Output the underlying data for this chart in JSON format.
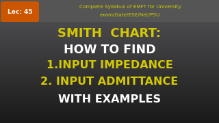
{
  "bg_color_top": "#5a5a5a",
  "bg_color_bottom": "#1a1a1a",
  "header_bg": "#555555",
  "lec_badge_color": "#cc5500",
  "lec_text": "Lec: 45",
  "header_text_line1": "Complete Syllabus of EMFT for University",
  "header_text_line2": "exam/Gate/ESE/Net/PSU",
  "line1": "SMITH  CHART:",
  "line2": "HOW TO FIND",
  "line3": "1.INPUT IMPEDANCE",
  "line4": "2. INPUT ADMITTANCE",
  "line5": "WITH EXAMPLES",
  "yellow_color": "#d4c800",
  "white_color": "#ffffff",
  "header_font_color": "#cccc00",
  "lec_font_color": "#ffffff",
  "fig_width": 3.2,
  "fig_height": 1.8,
  "dpi": 100
}
